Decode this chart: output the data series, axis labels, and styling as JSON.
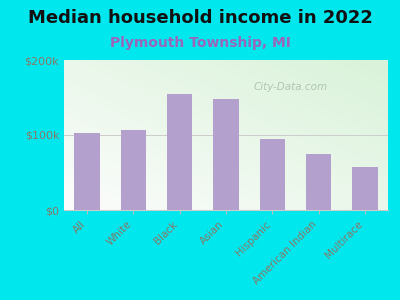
{
  "title": "Median household income in 2022",
  "subtitle": "Plymouth Township, MI",
  "categories": [
    "All",
    "White",
    "Black",
    "Asian",
    "Hispanic",
    "American Indian",
    "Multirace"
  ],
  "values": [
    103000,
    107000,
    155000,
    148000,
    95000,
    75000,
    58000
  ],
  "bar_color": "#b3a0cc",
  "background_outer": "#00e8ee",
  "ylim": [
    0,
    200000
  ],
  "ytick_labels": [
    "$0",
    "$100k",
    "$200k"
  ],
  "ytick_values": [
    0,
    100000,
    200000
  ],
  "title_fontsize": 13,
  "subtitle_fontsize": 10,
  "subtitle_color": "#9966bb",
  "tick_label_color": "#887766",
  "watermark": "City-Data.com",
  "watermark_color": "#aabbaa",
  "grad_top_left": "#d8edd8",
  "grad_bottom_right": "#f5faf0"
}
